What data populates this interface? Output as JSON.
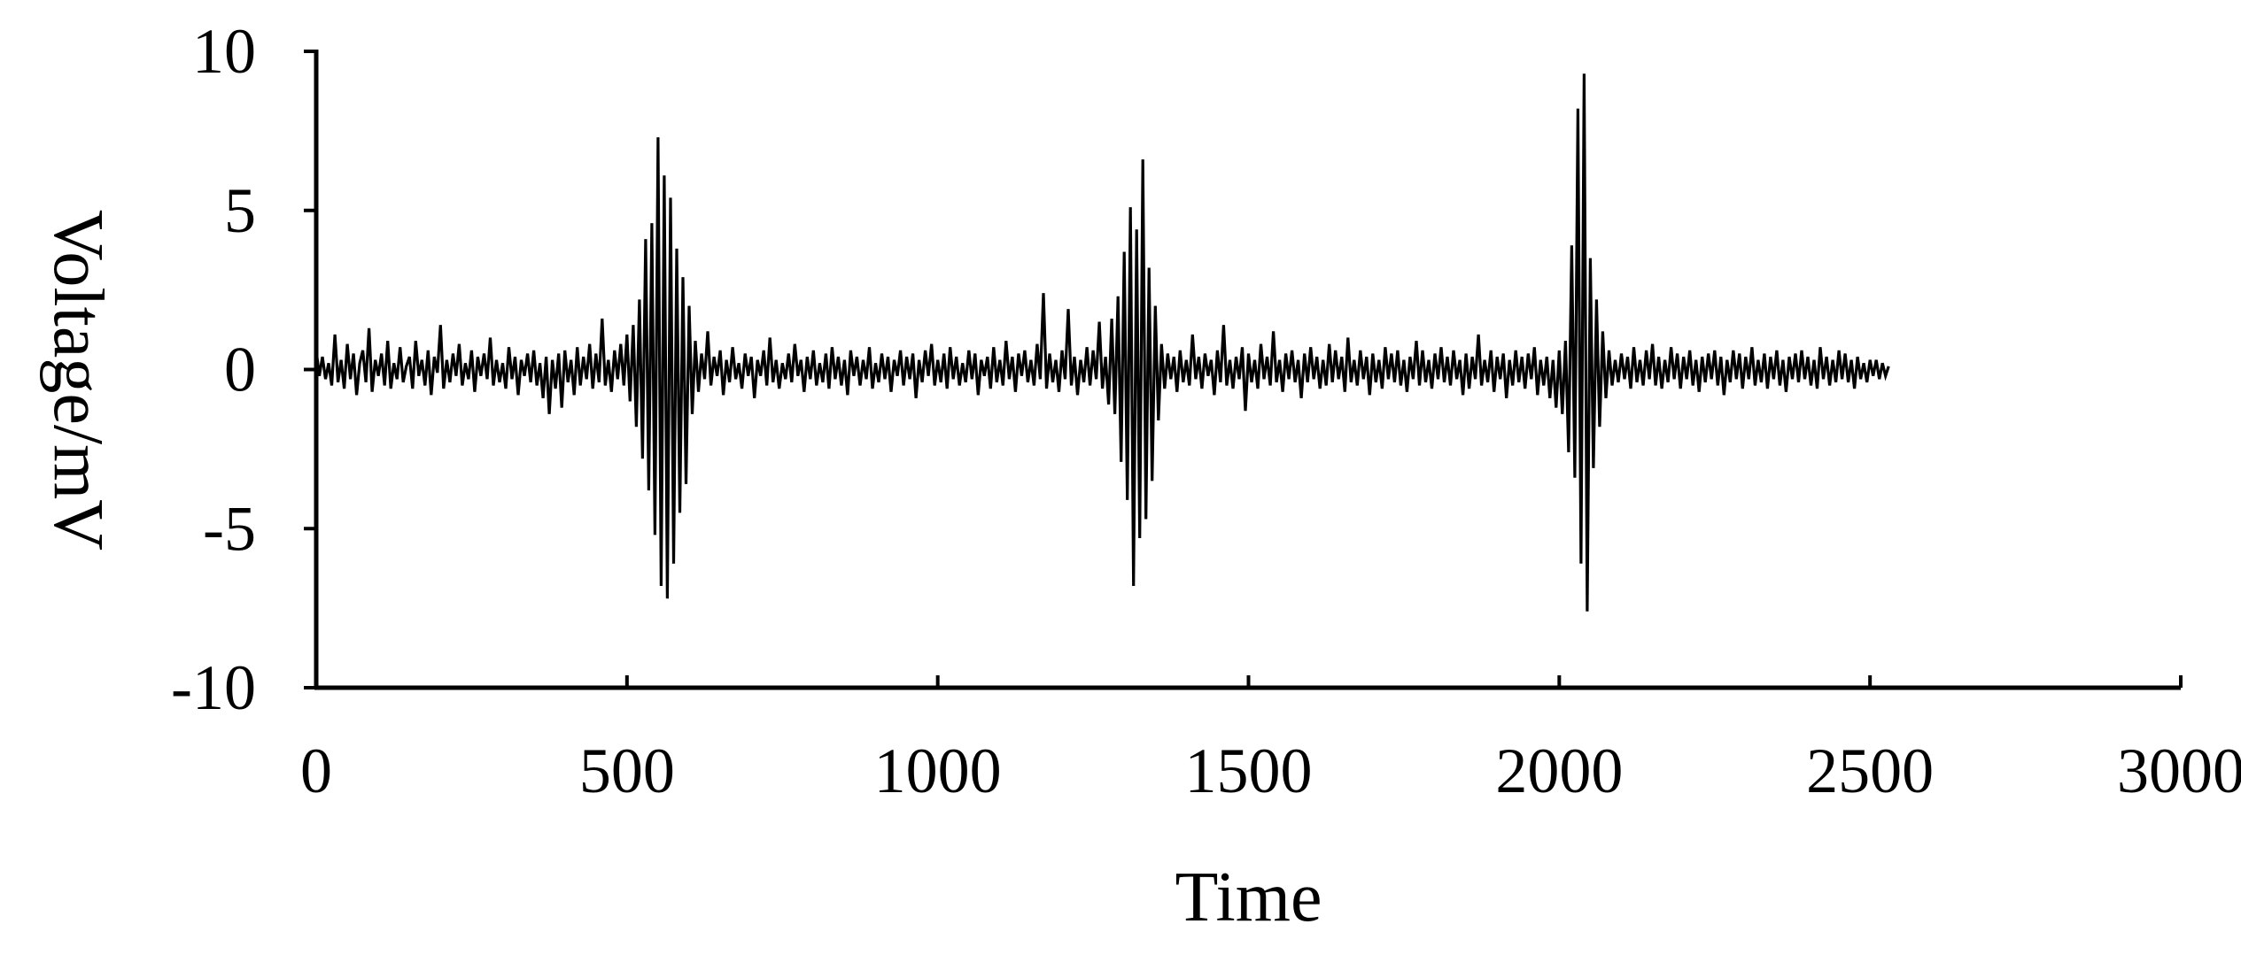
{
  "chart_data": {
    "type": "line",
    "xlabel": "Time",
    "ylabel": "Voltage/mV",
    "xlim": [
      0,
      3000
    ],
    "ylim": [
      -10,
      10
    ],
    "x_ticks": [
      0,
      500,
      1000,
      1500,
      2000,
      2500,
      3000
    ],
    "y_ticks": [
      10,
      5,
      0,
      -5,
      -10
    ],
    "grid": false,
    "legend": "none",
    "line_color": "#000000",
    "series": [
      {
        "x_start": 0,
        "x_step": 5,
        "values": [
          0.6,
          -0.2,
          0.4,
          -0.3,
          0.2,
          -0.5,
          1.1,
          -0.4,
          0.3,
          -0.6,
          0.8,
          -0.3,
          0.5,
          -0.8,
          0.2,
          0.6,
          -0.4,
          1.3,
          -0.7,
          0.3,
          -0.2,
          0.5,
          -0.5,
          0.9,
          -0.6,
          0.2,
          -0.3,
          0.7,
          -0.4,
          0.1,
          0.4,
          -0.6,
          0.9,
          -0.2,
          0.3,
          -0.5,
          0.6,
          -0.8,
          0.4,
          -0.1,
          1.4,
          -0.6,
          0.3,
          -0.4,
          0.5,
          -0.2,
          0.8,
          -0.5,
          0.2,
          -0.3,
          0.6,
          -0.7,
          0.4,
          -0.2,
          0.5,
          -0.3,
          1.0,
          -0.5,
          0.3,
          -0.4,
          0.2,
          -0.6,
          0.7,
          -0.3,
          0.4,
          -0.8,
          0.3,
          -0.2,
          0.5,
          -0.4,
          0.6,
          -0.5,
          0.2,
          -0.9,
          0.4,
          -1.4,
          0.3,
          -0.6,
          0.5,
          -1.2,
          0.6,
          -0.4,
          0.3,
          -0.8,
          0.7,
          -0.5,
          0.4,
          -0.3,
          0.8,
          -0.6,
          0.5,
          -0.4,
          1.6,
          -0.5,
          0.3,
          -0.7,
          0.6,
          -0.3,
          0.8,
          -0.5,
          1.1,
          -1.0,
          1.4,
          -1.8,
          2.2,
          -2.8,
          4.1,
          -3.8,
          4.6,
          -5.2,
          7.3,
          -6.8,
          6.1,
          -7.2,
          5.4,
          -6.1,
          3.8,
          -4.5,
          2.9,
          -3.6,
          2.0,
          -1.4,
          0.9,
          -0.7,
          0.5,
          -0.3,
          1.2,
          -0.5,
          0.4,
          -0.2,
          0.6,
          -0.8,
          0.3,
          -0.4,
          0.7,
          -0.3,
          0.2,
          -0.6,
          0.5,
          -0.2,
          0.4,
          -0.9,
          0.3,
          -0.2,
          0.6,
          -0.5,
          1.0,
          -0.4,
          0.3,
          -0.6,
          0.2,
          -0.3,
          0.5,
          -0.4,
          0.8,
          -0.2,
          0.3,
          -0.7,
          0.4,
          -0.3,
          0.6,
          -0.5,
          0.2,
          -0.4,
          0.5,
          -0.6,
          0.7,
          -0.3,
          0.4,
          -0.5,
          0.3,
          -0.8,
          0.6,
          -0.2,
          0.4,
          -0.5,
          0.3,
          -0.3,
          0.7,
          -0.6,
          0.2,
          -0.4,
          0.5,
          -0.3,
          0.4,
          -0.7,
          0.3,
          -0.2,
          0.6,
          -0.5,
          0.4,
          -0.3,
          0.5,
          -0.9,
          0.3,
          -0.4,
          0.6,
          -0.2,
          0.8,
          -0.5,
          0.3,
          -0.4,
          0.5,
          -0.6,
          0.7,
          -0.3,
          0.4,
          -0.5,
          0.2,
          -0.4,
          0.6,
          -0.3,
          0.5,
          -0.8,
          0.3,
          -0.2,
          0.4,
          -0.6,
          0.7,
          -0.4,
          0.3,
          -0.5,
          0.9,
          -0.3,
          0.4,
          -0.7,
          0.5,
          -0.2,
          0.6,
          -0.4,
          0.3,
          -0.5,
          0.8,
          -0.3,
          2.4,
          -0.6,
          0.5,
          -0.4,
          0.3,
          -0.7,
          0.6,
          -0.3,
          1.9,
          -0.5,
          0.4,
          -0.8,
          0.3,
          -0.4,
          0.7,
          -0.5,
          0.6,
          -0.3,
          1.5,
          -0.6,
          0.4,
          -1.1,
          1.6,
          -1.4,
          2.3,
          -2.9,
          3.7,
          -4.1,
          5.1,
          -6.8,
          4.4,
          -5.3,
          6.6,
          -4.7,
          3.2,
          -3.5,
          2.0,
          -1.6,
          0.8,
          -0.6,
          0.5,
          -0.3,
          0.4,
          -0.7,
          0.6,
          -0.4,
          0.3,
          -0.5,
          1.1,
          -0.3,
          0.4,
          -0.6,
          0.5,
          -0.2,
          0.3,
          -0.8,
          0.6,
          -0.4,
          1.4,
          -0.5,
          0.3,
          -0.6,
          0.4,
          -0.3,
          0.7,
          -1.3,
          0.5,
          -0.4,
          0.3,
          -0.6,
          0.8,
          -0.3,
          0.4,
          -0.5,
          1.2,
          -0.4,
          0.3,
          -0.7,
          0.5,
          -0.3,
          0.6,
          -0.4,
          0.3,
          -0.9,
          0.5,
          -0.4,
          0.7,
          -0.3,
          0.4,
          -0.6,
          0.3,
          -0.5,
          0.8,
          -0.4,
          0.6,
          -0.3,
          0.4,
          -0.7,
          1.0,
          -0.4,
          0.3,
          -0.5,
          0.6,
          -0.3,
          0.4,
          -0.8,
          0.5,
          -0.4,
          0.3,
          -0.6,
          0.7,
          -0.3,
          0.5,
          -0.4,
          0.6,
          -0.5,
          0.3,
          -0.7,
          0.4,
          -0.3,
          0.9,
          -0.5,
          0.6,
          -0.4,
          0.3,
          -0.6,
          0.5,
          -0.3,
          0.7,
          -0.4,
          0.4,
          -0.5,
          0.6,
          -0.3,
          0.3,
          -0.8,
          0.5,
          -0.6,
          0.4,
          -0.3,
          1.1,
          -0.5,
          0.3,
          -0.4,
          0.6,
          -0.7,
          0.4,
          -0.3,
          0.5,
          -0.9,
          0.3,
          -0.5,
          0.6,
          -0.4,
          0.4,
          -0.6,
          0.5,
          -0.3,
          0.7,
          -0.8,
          0.3,
          -0.5,
          0.4,
          -0.9,
          0.3,
          -1.2,
          0.6,
          -1.4,
          0.9,
          -2.6,
          3.9,
          -3.4,
          8.2,
          -6.1,
          9.3,
          -7.6,
          3.5,
          -3.1,
          2.2,
          -1.8,
          1.2,
          -0.9,
          0.6,
          -0.5,
          0.3,
          -0.4,
          0.5,
          -0.3,
          0.4,
          -0.6,
          0.7,
          -0.4,
          0.3,
          -0.5,
          0.6,
          -0.3,
          0.8,
          -0.5,
          0.4,
          -0.6,
          0.3,
          -0.4,
          0.7,
          -0.3,
          0.5,
          -0.6,
          0.4,
          -0.3,
          0.6,
          -0.5,
          0.3,
          -0.7,
          0.4,
          -0.4,
          0.5,
          -0.3,
          0.6,
          -0.5,
          0.4,
          -0.8,
          0.3,
          -0.4,
          0.6,
          -0.3,
          0.5,
          -0.6,
          0.4,
          -0.3,
          0.7,
          -0.5,
          0.3,
          -0.4,
          0.5,
          -0.6,
          0.4,
          -0.3,
          0.6,
          -0.5,
          0.3,
          -0.7,
          0.4,
          -0.3,
          0.5,
          -0.4,
          0.6,
          -0.3,
          0.4,
          -0.5,
          0.3,
          -0.6,
          0.7,
          -0.3,
          0.4,
          -0.5,
          0.3,
          -0.4,
          0.6,
          -0.3,
          0.5,
          -0.4,
          0.3,
          -0.6,
          0.4,
          -0.3,
          0.2,
          -0.4,
          0.3,
          -0.2,
          0.3,
          -0.3,
          0.2,
          -0.2,
          0.1
        ]
      }
    ]
  }
}
